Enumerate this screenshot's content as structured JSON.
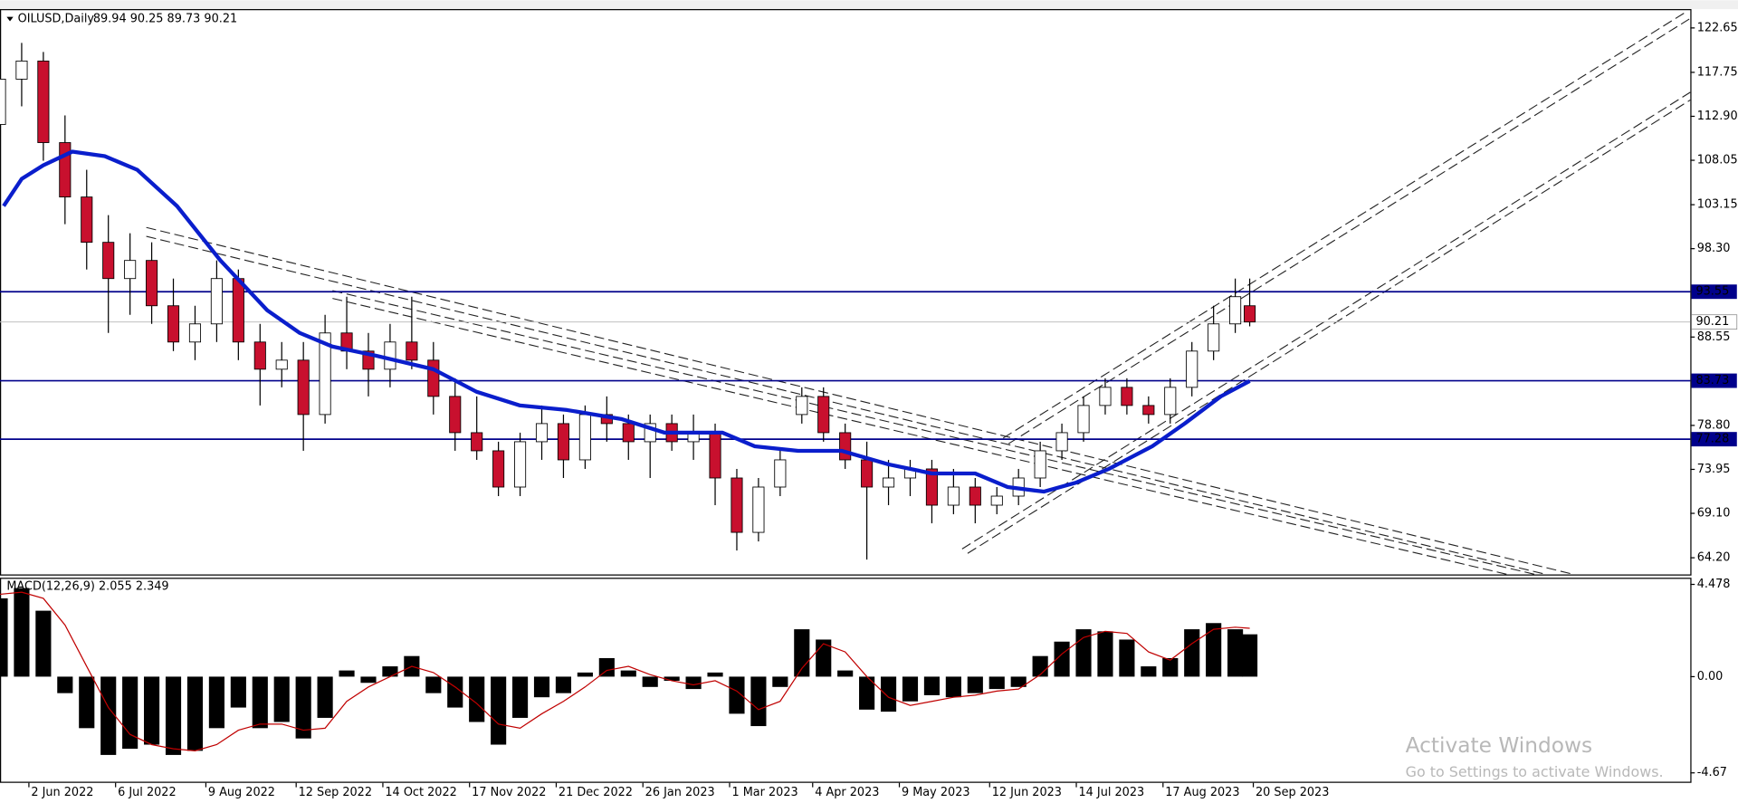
{
  "chart_data": [
    {
      "type": "candlestick",
      "title": "OILUSD,Daily",
      "subtitle": "89.94 90.25 89.73 90.21",
      "x": [
        0,
        6,
        12,
        18,
        24,
        30,
        36,
        42,
        48,
        54,
        60,
        66,
        72,
        78,
        84,
        90,
        96,
        102,
        108,
        114,
        120,
        126,
        132,
        138,
        144,
        150,
        156,
        162,
        168,
        174,
        180,
        186,
        192,
        198,
        204,
        210,
        216,
        222,
        228,
        234,
        240,
        246,
        252,
        258,
        264,
        270,
        276,
        282,
        288,
        294,
        300,
        306,
        312,
        318,
        324,
        330,
        336,
        342,
        346
      ],
      "open": [
        112,
        117,
        119,
        110,
        104,
        99,
        95,
        97,
        92,
        88,
        90,
        95,
        88,
        85,
        86,
        80,
        89,
        87,
        85,
        88,
        86,
        82,
        78,
        76,
        72,
        77,
        79,
        75,
        80,
        79,
        77,
        79,
        77,
        78,
        73,
        67,
        72,
        80,
        82,
        78,
        75,
        72,
        73,
        74,
        70,
        72,
        70,
        71,
        73,
        76,
        78,
        81,
        83,
        81,
        80,
        83,
        87,
        90,
        92
      ],
      "high": [
        118,
        121,
        120,
        113,
        107,
        102,
        100,
        99,
        95,
        92,
        97,
        96,
        90,
        88,
        88,
        91,
        93,
        89,
        90,
        93,
        88,
        84,
        82,
        77,
        78,
        81,
        80,
        81,
        82,
        80,
        80,
        80,
        80,
        79,
        74,
        73,
        76,
        83,
        83,
        79,
        77,
        75,
        75,
        75,
        74,
        73,
        72,
        74,
        77,
        79,
        82,
        84,
        84,
        82,
        84,
        88,
        92,
        95,
        95
      ],
      "low": [
        108,
        114,
        108,
        101,
        96,
        89,
        91,
        90,
        87,
        86,
        88,
        86,
        81,
        83,
        76,
        79,
        85,
        82,
        83,
        85,
        80,
        76,
        75,
        71,
        71,
        75,
        73,
        74,
        77,
        75,
        73,
        76,
        75,
        70,
        65,
        66,
        71,
        79,
        77,
        74,
        64,
        70,
        71,
        68,
        69,
        68,
        69,
        70,
        72,
        75,
        77,
        80,
        80,
        79,
        79,
        82,
        86,
        89,
        89.73
      ],
      "close": [
        117,
        119,
        110,
        104,
        99,
        95,
        97,
        92,
        88,
        90,
        95,
        88,
        85,
        86,
        80,
        89,
        87,
        85,
        88,
        86,
        82,
        78,
        76,
        72,
        77,
        79,
        75,
        80,
        79,
        77,
        79,
        77,
        78,
        73,
        67,
        72,
        75,
        82,
        78,
        75,
        72,
        73,
        74,
        70,
        72,
        70,
        71,
        73,
        76,
        78,
        81,
        83,
        81,
        80,
        83,
        87,
        90,
        93,
        90.21
      ],
      "up_color": "#ffffff",
      "down_color": "#c8102e",
      "ma": {
        "color": "#0a1ecc",
        "x": [
          1,
          6,
          12,
          20,
          29,
          38,
          49,
          61,
          74,
          83,
          92,
          104,
          120,
          132,
          144,
          157,
          172,
          184,
          200,
          209,
          221,
          233,
          246,
          258,
          270,
          279,
          289,
          298,
          307,
          319,
          328,
          338,
          346
        ],
        "values": [
          103,
          106,
          107.5,
          109,
          108.5,
          107,
          103,
          97,
          91.5,
          89,
          87.5,
          86.5,
          85,
          82.5,
          81,
          80.5,
          79.5,
          78,
          78,
          76.5,
          76,
          76,
          74.5,
          73.5,
          73.5,
          72,
          71.5,
          72.5,
          74,
          76.5,
          79,
          82,
          83.7
        ]
      },
      "levels": [
        93.55,
        83.73,
        77.28
      ],
      "level_color": "#00008b",
      "last": 90.21,
      "xlim": [
        0,
        468
      ],
      "xticks": [
        {
          "value": 8,
          "label": "2 Jun 2022"
        },
        {
          "value": 32,
          "label": "6 Jul 2022"
        },
        {
          "value": 57,
          "label": "9 Aug 2022"
        },
        {
          "value": 82,
          "label": "12 Sep 2022"
        },
        {
          "value": 106,
          "label": "14 Oct 2022"
        },
        {
          "value": 130,
          "label": "17 Nov 2022"
        },
        {
          "value": 154,
          "label": "21 Dec 2022"
        },
        {
          "value": 178,
          "label": "26 Jan 2023"
        },
        {
          "value": 202,
          "label": "1 Mar 2023"
        },
        {
          "value": 225,
          "label": "4 Apr 2023"
        },
        {
          "value": 249,
          "label": "9 May 2023"
        },
        {
          "value": 274,
          "label": "12 Jun 2023"
        },
        {
          "value": 298,
          "label": "14 Jul 2023"
        },
        {
          "value": 322,
          "label": "17 Aug 2023"
        },
        {
          "value": 347,
          "label": "20 Sep 2023"
        }
      ],
      "ylim": [
        62.36,
        124.73
      ],
      "yticks": [
        122.65,
        117.75,
        {
          "value": 112.9,
          "label": "112.90"
        },
        108.05,
        103.15,
        {
          "value": 98.3,
          "label": "98.30"
        },
        88.55,
        {
          "value": 78.8,
          "label": "78.80"
        },
        73.95,
        {
          "value": 69.1,
          "label": "69.10"
        },
        {
          "value": 64.2,
          "label": "64.20"
        }
      ]
    },
    {
      "type": "bar",
      "title": "MACD(12,26,9) 2.055 2.349",
      "x": [
        0,
        6,
        12,
        18,
        24,
        30,
        36,
        42,
        48,
        54,
        60,
        66,
        72,
        78,
        84,
        90,
        96,
        102,
        108,
        114,
        120,
        126,
        132,
        138,
        144,
        150,
        156,
        162,
        168,
        174,
        180,
        186,
        192,
        198,
        204,
        210,
        216,
        222,
        228,
        234,
        240,
        246,
        252,
        258,
        264,
        270,
        276,
        282,
        288,
        294,
        300,
        306,
        312,
        318,
        324,
        330,
        336,
        342,
        346
      ],
      "values": [
        3.8,
        4.3,
        3.2,
        -0.8,
        -2.5,
        -3.8,
        -3.5,
        -3.3,
        -3.8,
        -3.6,
        -2.5,
        -1.5,
        -2.5,
        -2.2,
        -3,
        -2,
        0.3,
        -0.3,
        0.5,
        1,
        -0.8,
        -1.5,
        -2.2,
        -3.3,
        -2,
        -1,
        -0.8,
        0.2,
        0.9,
        0.3,
        -0.5,
        -0.2,
        -0.6,
        0.2,
        -1.8,
        -2.4,
        -0.5,
        2.3,
        1.8,
        0.3,
        -1.6,
        -1.7,
        -1.2,
        -0.9,
        -1,
        -0.8,
        -0.6,
        -0.5,
        1,
        1.7,
        2.3,
        2.2,
        1.8,
        0.5,
        0.9,
        2.3,
        2.6,
        2.3,
        2.055
      ],
      "signal": [
        4.0,
        4.1,
        3.8,
        2.5,
        0.5,
        -1.5,
        -2.8,
        -3.3,
        -3.5,
        -3.6,
        -3.3,
        -2.6,
        -2.3,
        -2.3,
        -2.6,
        -2.5,
        -1.2,
        -0.5,
        0,
        0.5,
        0.2,
        -0.5,
        -1.3,
        -2.3,
        -2.5,
        -1.8,
        -1.2,
        -0.5,
        0.3,
        0.5,
        0.1,
        -0.2,
        -0.4,
        -0.2,
        -0.7,
        -1.6,
        -1.2,
        0.4,
        1.6,
        1.2,
        0,
        -1,
        -1.4,
        -1.2,
        -1,
        -0.9,
        -0.7,
        -0.6,
        0.1,
        1.1,
        1.9,
        2.2,
        2.1,
        1.2,
        0.8,
        1.6,
        2.3,
        2.4,
        2.349
      ],
      "color": "#000000",
      "signal_color": "#c00000",
      "xlim": [
        0,
        468
      ],
      "ylim": [
        -5.1,
        4.8
      ],
      "yticks": [
        4.478,
        {
          "value": 0,
          "label": "0.00"
        },
        -4.67
      ]
    }
  ],
  "watermark": {
    "title": "Activate Windows",
    "text": "Go to Settings to activate Windows."
  }
}
